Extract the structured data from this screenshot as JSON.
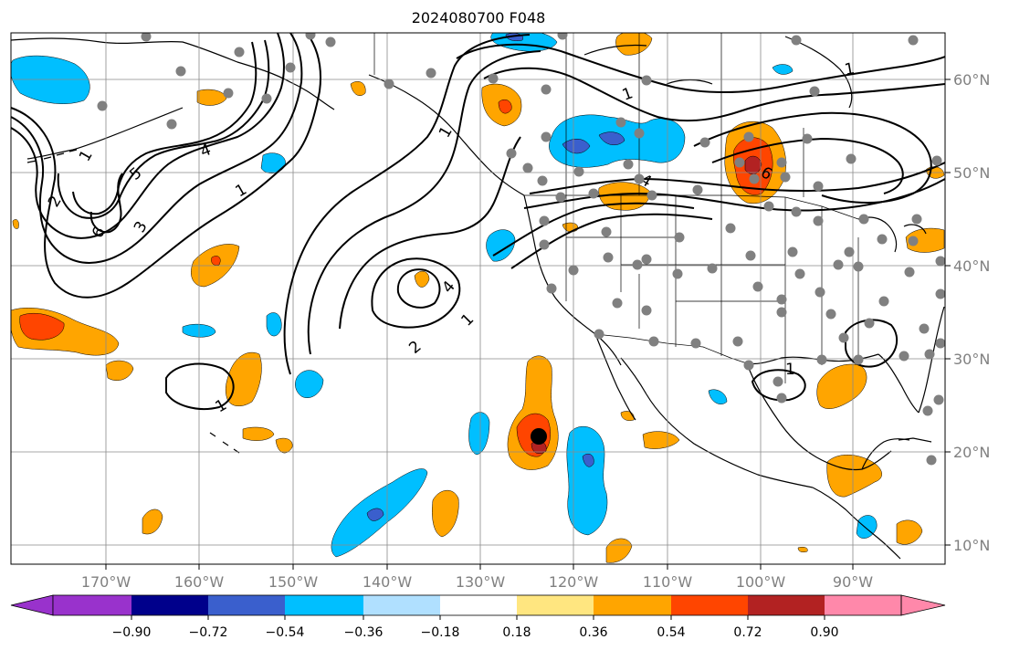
{
  "title": "2024080700 F048",
  "map": {
    "lon_labels": [
      "170°W",
      "160°W",
      "150°W",
      "140°W",
      "130°W",
      "120°W",
      "110°W",
      "100°W",
      "90°W"
    ],
    "lat_labels": [
      "60°N",
      "50°N",
      "40°N",
      "30°N",
      "20°N",
      "10°N"
    ],
    "contour_labels": [
      "1",
      "1",
      "1",
      "1",
      "1",
      "1",
      "2",
      "3",
      "4",
      "4",
      "5",
      "6",
      "6",
      "2",
      "4",
      "1",
      "1"
    ],
    "colors": {
      "land_line": "#000000",
      "grid": "#8a8a8a",
      "contour": "#000000",
      "station_dot": "#808080",
      "storm_center": "#000000",
      "tick_label": "#808080"
    }
  },
  "colorbar": {
    "tick_labels": [
      "−0.90",
      "−0.72",
      "−0.54",
      "−0.36",
      "−0.18",
      "0.18",
      "0.36",
      "0.54",
      "0.72",
      "0.90"
    ],
    "colors": [
      "#9932cc",
      "#00008b",
      "#3a5fcd",
      "#00bfff",
      "#b0e0ff",
      "#ffffff",
      "#ffe680",
      "#ffa500",
      "#ff4500",
      "#b22222",
      "#ff88aa"
    ]
  }
}
